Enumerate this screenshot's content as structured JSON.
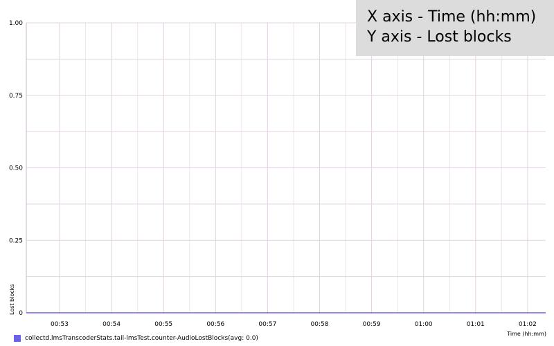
{
  "chart_data": {
    "type": "line",
    "xlabel": "Time (hh:mm)",
    "ylabel": "Lost blocks",
    "categories": [
      "00:53",
      "00:54",
      "00:55",
      "00:56",
      "00:57",
      "00:58",
      "00:59",
      "01:00",
      "01:01",
      "01:02"
    ],
    "y_ticks": [
      "0",
      "0.25",
      "0.50",
      "0.75",
      "1.00"
    ],
    "y_tick_values": [
      0,
      0.25,
      0.5,
      0.75,
      1.0
    ],
    "ylim": [
      0,
      1
    ],
    "grid": true,
    "series": [
      {
        "name": "collectd.lmsTranscoderStats.tail-lmsTest.counter-AudioLostBlocks(avg: 0.0)",
        "color": "#6b63e6",
        "values": [
          0,
          0,
          0,
          0,
          0,
          0,
          0,
          0,
          0,
          0
        ]
      }
    ],
    "legend_position": "bottom-left"
  },
  "info": {
    "line1": "X axis - Time (hh:mm)",
    "line2": "Y axis - Lost blocks"
  },
  "colors": {
    "grid": "#e2d3e2",
    "axis": "#c8b9c8",
    "info_bg": "#dcdcdc",
    "series": "#6b63e6"
  }
}
